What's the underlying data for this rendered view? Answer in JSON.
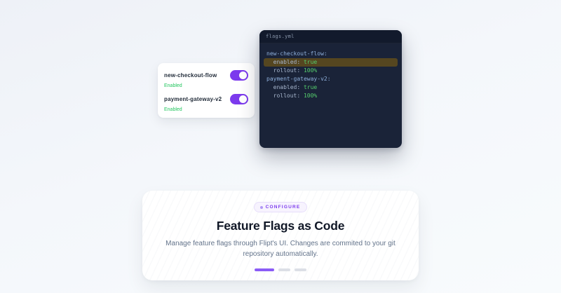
{
  "theme": {
    "accent": "#7c3aed",
    "accent-light": "#8b5cf6",
    "status-green": "#22c55e",
    "code-bg": "#1a2338",
    "code-titlebar-bg": "#121a2c",
    "highlight-bg": "#554620",
    "code-flag": "#8fb0dc",
    "code-key": "#a6b5cc",
    "code-val": "#55cd6c"
  },
  "flags_card": {
    "items": [
      {
        "name": "new-checkout-flow",
        "status": "Enabled",
        "on": true
      },
      {
        "name": "payment-gateway-v2",
        "status": "Enabled",
        "on": true
      }
    ]
  },
  "code_window": {
    "filename": "flags.yml",
    "lines": [
      {
        "highlight": false,
        "tokens": [
          {
            "t": "new-checkout-flow:",
            "c": "flag"
          }
        ]
      },
      {
        "highlight": true,
        "tokens": [
          {
            "t": "  enabled: ",
            "c": "key"
          },
          {
            "t": "true",
            "c": "val"
          }
        ]
      },
      {
        "highlight": false,
        "tokens": [
          {
            "t": "  rollout: ",
            "c": "key"
          },
          {
            "t": "100%",
            "c": "val"
          }
        ]
      },
      {
        "highlight": false,
        "tokens": [
          {
            "t": "payment-gateway-v2:",
            "c": "flag"
          }
        ]
      },
      {
        "highlight": false,
        "tokens": [
          {
            "t": "  enabled: ",
            "c": "key"
          },
          {
            "t": "true",
            "c": "val"
          }
        ]
      },
      {
        "highlight": false,
        "tokens": [
          {
            "t": "  rollout: ",
            "c": "key"
          },
          {
            "t": "100%",
            "c": "val"
          }
        ]
      }
    ]
  },
  "section": {
    "badge": "CONFIGURE",
    "title": "Feature Flags as Code",
    "description": "Manage feature flags through Flipt's UI. Changes are commited to your git repository automatically.",
    "indicators": [
      {
        "state": "active"
      },
      {
        "state": "inactive"
      },
      {
        "state": "inactive"
      }
    ]
  }
}
